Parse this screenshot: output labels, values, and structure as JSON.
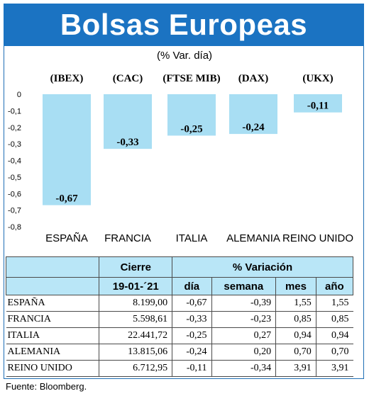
{
  "header": {
    "title": "Bolsas Europeas",
    "subtitle": "(% Var. día)"
  },
  "chart_data": {
    "type": "bar",
    "title": "Bolsas Europeas",
    "subtitle": "(% Var. día)",
    "index_labels": [
      "(IBEX)",
      "(CAC)",
      "(FTSE MIB)",
      "(DAX)",
      "(UKX)"
    ],
    "categories": [
      "ESPAÑA",
      "FRANCIA",
      "ITALIA",
      "ALEMANIA",
      "REINO UNIDO"
    ],
    "values": [
      -0.67,
      -0.33,
      -0.25,
      -0.24,
      -0.11
    ],
    "value_labels": [
      "-0,67",
      "-0,33",
      "-0,25",
      "-0,24",
      "-0,11"
    ],
    "ylim": [
      -0.8,
      0
    ],
    "yticks": [
      0,
      -0.1,
      -0.2,
      -0.3,
      -0.4,
      -0.5,
      -0.6,
      -0.7,
      -0.8
    ],
    "ytick_labels": [
      "0",
      "-0,1",
      "-0,2",
      "-0,3",
      "-0,4",
      "-0,5",
      "-0,6",
      "-0,7",
      "-0,8"
    ],
    "bar_color": "#a8def3",
    "grid": false
  },
  "table": {
    "header_cierre": "Cierre",
    "header_variacion": "% Variación",
    "date": "19-01-´21",
    "columns": [
      "día",
      "semana",
      "mes",
      "año"
    ],
    "rows": [
      {
        "name": "ESPAÑA",
        "cierre": "8.199,00",
        "dia": "-0,67",
        "semana": "-0,39",
        "mes": "1,55",
        "ano": "1,55"
      },
      {
        "name": "FRANCIA",
        "cierre": "5.598,61",
        "dia": "-0,33",
        "semana": "-0,23",
        "mes": "0,85",
        "ano": "0,85"
      },
      {
        "name": "ITALIA",
        "cierre": "22.441,72",
        "dia": "-0,25",
        "semana": "0,27",
        "mes": "0,94",
        "ano": "0,94"
      },
      {
        "name": "ALEMANIA",
        "cierre": "13.815,06",
        "dia": "-0,24",
        "semana": "0,20",
        "mes": "0,70",
        "ano": "0,70"
      },
      {
        "name": "REINO UNIDO",
        "cierre": "6.712,95",
        "dia": "-0,11",
        "semana": "-0,34",
        "mes": "3,91",
        "ano": "3,91"
      }
    ]
  },
  "source": "Fuente: Bloomberg.",
  "colors": {
    "banner": "#1b73c2",
    "bar": "#a8def3",
    "table_header": "#b9e6f7"
  }
}
